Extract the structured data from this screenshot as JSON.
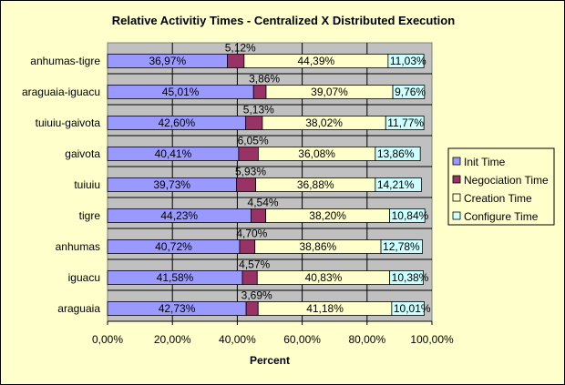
{
  "chart_data": {
    "type": "bar",
    "stacked": true,
    "orientation": "horizontal",
    "title": "Relative Activitiy Times - Centralized X Distributed Execution",
    "xlabel": "Percent",
    "xlim": [
      0,
      100
    ],
    "x_ticks": [
      "0,00%",
      "20,00%",
      "40,00%",
      "60,00%",
      "80,00%",
      "100,00%"
    ],
    "grid": true,
    "legend_position": "right",
    "categories": [
      "anhumas-tigre",
      "araguaia-iguacu",
      "tuiuiu-gaivota",
      "gaivota",
      "tuiuiu",
      "tigre",
      "anhumas",
      "iguacu",
      "araguaia"
    ],
    "series": [
      {
        "name": "Init Time",
        "color": "#9999ff",
        "values": [
          36.97,
          45.01,
          42.6,
          40.41,
          39.73,
          44.23,
          40.72,
          41.58,
          42.73
        ],
        "labels": [
          "36,97%",
          "45,01%",
          "42,60%",
          "40,41%",
          "39,73%",
          "44,23%",
          "40,72%",
          "41,58%",
          "42,73%"
        ]
      },
      {
        "name": "Negociation Time",
        "color": "#993366",
        "values": [
          5.12,
          3.86,
          5.13,
          6.05,
          5.93,
          4.54,
          4.7,
          4.57,
          3.69
        ],
        "labels": [
          "5,12%",
          "3,86%",
          "5,13%",
          "6,05%",
          "5,93%",
          "4,54%",
          "4,70%",
          "4,57%",
          "3,69%"
        ]
      },
      {
        "name": "Creation Time",
        "color": "#ffffcc",
        "values": [
          44.39,
          39.07,
          38.02,
          36.08,
          36.88,
          38.2,
          38.86,
          40.83,
          41.18
        ],
        "labels": [
          "44,39%",
          "39,07%",
          "38,02%",
          "36,08%",
          "36,88%",
          "38,20%",
          "38,86%",
          "40,83%",
          "41,18%"
        ]
      },
      {
        "name": "Configure Time",
        "color": "#ccffff",
        "values": [
          11.03,
          9.76,
          11.77,
          13.86,
          14.21,
          10.84,
          12.78,
          10.38,
          10.01
        ],
        "labels": [
          "11,03%",
          "9,76%",
          "11,77%",
          "13,86%",
          "14,21%",
          "10,84%",
          "12,78%",
          "10,38%",
          "10,01%"
        ]
      }
    ],
    "plot_background": "#c0c0c0"
  }
}
